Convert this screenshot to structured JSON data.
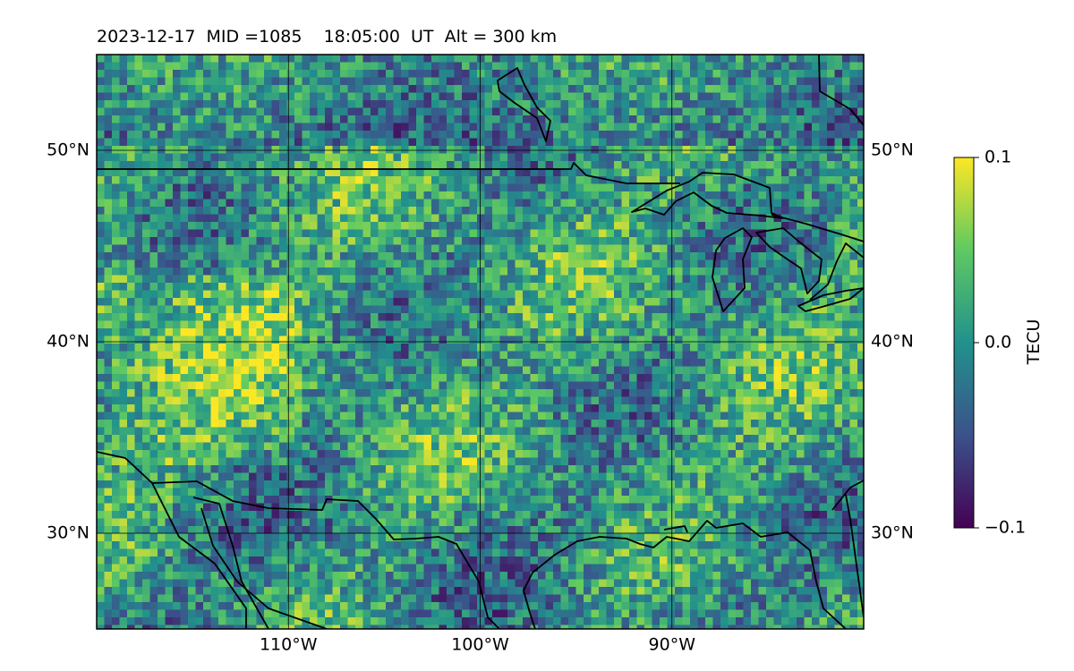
{
  "title": "2023-12-17  MID =1085    18:05:00  UT  Alt = 300 km",
  "map": {
    "lon_range": [
      -120,
      -80
    ],
    "lat_range": [
      25,
      55
    ],
    "lon_ticks": [
      {
        "value": -110,
        "label": "110°W"
      },
      {
        "value": -100,
        "label": "100°W"
      },
      {
        "value": -90,
        "label": "90°W"
      }
    ],
    "lat_ticks": [
      {
        "value": 50,
        "label": "50°N"
      },
      {
        "value": 40,
        "label": "40°N"
      },
      {
        "value": 30,
        "label": "30°N"
      }
    ],
    "gridlines": true,
    "field": "detrended TEC perturbation",
    "colormap": "viridis"
  },
  "colorbar": {
    "label": "TECU",
    "min": -0.1,
    "max": 0.1,
    "ticks": [
      {
        "value": 0.1,
        "label": "0.1"
      },
      {
        "value": 0.0,
        "label": "0.0"
      },
      {
        "value": -0.1,
        "label": "−0.1"
      }
    ],
    "colors": [
      "#440154",
      "#3b528b",
      "#21918c",
      "#5ec962",
      "#fde725"
    ]
  }
}
